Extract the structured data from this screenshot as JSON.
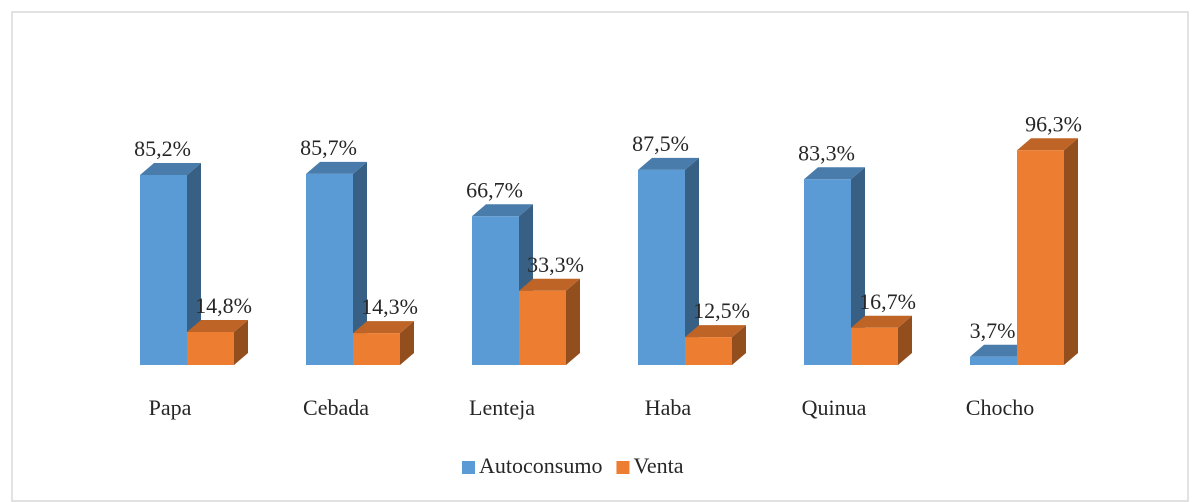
{
  "chart_data": {
    "type": "bar3d",
    "categories": [
      "Papa",
      "Cebada",
      "Lenteja",
      "Haba",
      "Quinua",
      "Chocho"
    ],
    "series": [
      {
        "name": "Autoconsumo",
        "color": "#5b9bd5",
        "values": [
          85.2,
          85.7,
          66.7,
          87.5,
          83.3,
          3.7
        ],
        "value_labels": [
          "85,2%",
          "85,7%",
          "66,7%",
          "87,5%",
          "83,3%",
          "3,7%"
        ]
      },
      {
        "name": "Venta",
        "color": "#ed7d31",
        "values": [
          14.8,
          14.3,
          33.3,
          12.5,
          16.7,
          96.3
        ],
        "value_labels": [
          "14,8%",
          "14,3%",
          "33,3%",
          "12,5%",
          "16,7%",
          "96,3%"
        ]
      }
    ],
    "legend": "bottom"
  }
}
